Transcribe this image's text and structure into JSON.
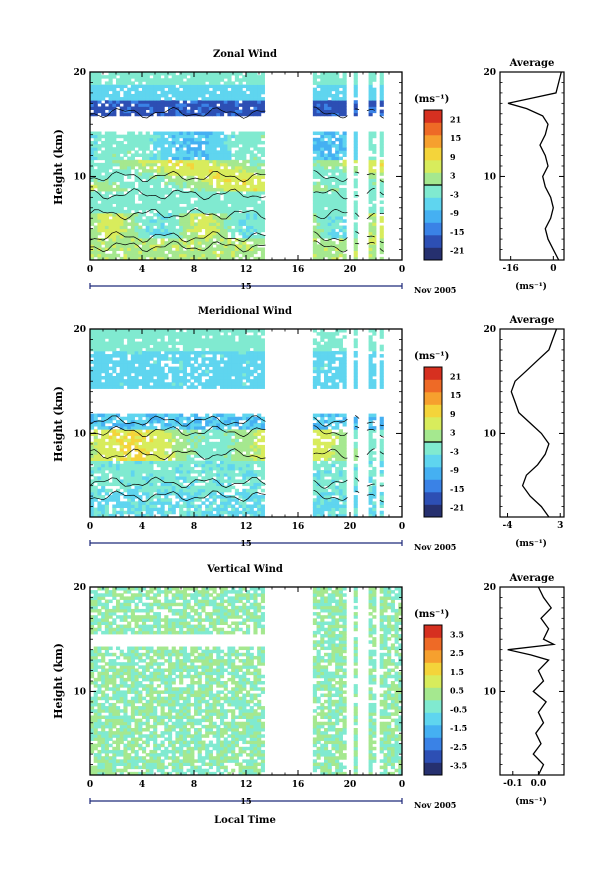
{
  "figure": {
    "xlabel": "Local Time",
    "date_label": "Nov 2005",
    "day_label": "15",
    "units_label": "(ms⁻¹)",
    "avg_title": "Average",
    "ylabel": "Height (km)"
  },
  "chart_data": [
    {
      "type": "heatmap",
      "title": "Zonal Wind",
      "xlabel": "",
      "ylabel": "Height (km)",
      "xlim": [
        0,
        24
      ],
      "ylim": [
        2,
        20
      ],
      "x_ticks": [
        "0",
        "4",
        "8",
        "12",
        "16",
        "20",
        "0"
      ],
      "x_tick_values": [
        0,
        4,
        8,
        12,
        16,
        20,
        24
      ],
      "y_ticks": [
        "10",
        "20"
      ],
      "y_tick_values": [
        10,
        20
      ],
      "data_gaps": [
        [
          13.5,
          17.2
        ],
        [
          19.8,
          20.4
        ],
        [
          20.7,
          21.3
        ],
        [
          21.9,
          22.3
        ]
      ],
      "colorbar": {
        "label": "(ms⁻¹)",
        "range": [
          -24,
          24
        ],
        "ticks": [
          "21",
          "15",
          "9",
          "3",
          "-3",
          "-9",
          "-15",
          "-21"
        ],
        "tick_values": [
          21,
          15,
          9,
          3,
          -3,
          -9,
          -15,
          -21
        ]
      },
      "profile": {
        "title": "Average",
        "x_ticks": [
          "-16",
          "0"
        ],
        "x_tick_values": [
          -16,
          0
        ],
        "xlim": [
          -20,
          4
        ],
        "xlabel": "(ms⁻¹)",
        "y_ticks": [
          "10",
          "20"
        ],
        "y_tick_values": [
          10,
          20
        ],
        "height": [
          2,
          3,
          4,
          5,
          6,
          7,
          8,
          9,
          10,
          11,
          12,
          13,
          14,
          15,
          15.8,
          16.5,
          17,
          17.5,
          18,
          19,
          20
        ],
        "value": [
          2,
          0,
          -2,
          -3,
          -1,
          0,
          -1,
          -3,
          -4,
          -2,
          -3,
          -5,
          -3,
          -2,
          -4,
          -10,
          -17,
          -8,
          1,
          2,
          3
        ]
      }
    },
    {
      "type": "heatmap",
      "title": "Meridional Wind",
      "xlabel": "",
      "ylabel": "Height (km)",
      "xlim": [
        0,
        24
      ],
      "ylim": [
        2,
        20
      ],
      "x_ticks": [
        "0",
        "4",
        "8",
        "12",
        "16",
        "20",
        "0"
      ],
      "x_tick_values": [
        0,
        4,
        8,
        12,
        16,
        20,
        24
      ],
      "y_ticks": [
        "10",
        "20"
      ],
      "y_tick_values": [
        10,
        20
      ],
      "data_gaps": [
        [
          13.5,
          17.2
        ],
        [
          19.8,
          20.4
        ],
        [
          20.7,
          21.3
        ],
        [
          21.9,
          22.3
        ]
      ],
      "colorbar": {
        "label": "(ms⁻¹)",
        "range": [
          -24,
          24
        ],
        "ticks": [
          "21",
          "15",
          "9",
          "3",
          "-3",
          "-9",
          "-15",
          "-21"
        ],
        "tick_values": [
          21,
          15,
          9,
          3,
          -3,
          -9,
          -15,
          -21
        ]
      },
      "profile": {
        "title": "Average",
        "x_ticks": [
          "-4",
          "3"
        ],
        "x_tick_values": [
          -4,
          3
        ],
        "xlim": [
          -5,
          3.5
        ],
        "xlabel": "(ms⁻¹)",
        "y_ticks": [
          "10",
          "20"
        ],
        "y_tick_values": [
          10,
          20
        ],
        "height": [
          2,
          3,
          4,
          5,
          6,
          7,
          8,
          9,
          10,
          11,
          12,
          13,
          14,
          15,
          16,
          17,
          18,
          19,
          20
        ],
        "value": [
          1.5,
          0.5,
          -1,
          -2,
          -1.5,
          0,
          1,
          1.5,
          0.5,
          -1,
          -2.5,
          -3,
          -3.5,
          -3,
          -1.5,
          0,
          1.5,
          2,
          2.5
        ]
      }
    },
    {
      "type": "heatmap",
      "title": "Vertical Wind",
      "xlabel": "Local Time",
      "ylabel": "Height (km)",
      "xlim": [
        0,
        24
      ],
      "ylim": [
        2,
        20
      ],
      "x_ticks": [
        "0",
        "4",
        "8",
        "12",
        "16",
        "20",
        "0"
      ],
      "x_tick_values": [
        0,
        4,
        8,
        12,
        16,
        20,
        24
      ],
      "y_ticks": [
        "10",
        "20"
      ],
      "y_tick_values": [
        10,
        20
      ],
      "data_gaps": [
        [
          13.5,
          17.2
        ],
        [
          19.8,
          20.4
        ],
        [
          20.7,
          21.3
        ],
        [
          21.9,
          22.3
        ]
      ],
      "colorbar": {
        "label": "(ms⁻¹)",
        "range": [
          -4,
          4
        ],
        "ticks": [
          "3.5",
          "2.5",
          "1.5",
          "0.5",
          "-0.5",
          "-1.5",
          "-2.5",
          "-3.5"
        ],
        "tick_values": [
          3.5,
          2.5,
          1.5,
          0.5,
          -0.5,
          -1.5,
          -2.5,
          -3.5
        ]
      },
      "profile": {
        "title": "Average",
        "x_ticks": [
          "-0.1",
          "0.0"
        ],
        "x_tick_values": [
          -0.1,
          0.0
        ],
        "xlim": [
          -0.15,
          0.1
        ],
        "xlabel": "(ms⁻¹)",
        "y_ticks": [
          "10",
          "20"
        ],
        "y_tick_values": [
          10,
          20
        ],
        "height": [
          2,
          3,
          4,
          5,
          6,
          7,
          8,
          9,
          10,
          11,
          12,
          13,
          13.5,
          14,
          14.5,
          15,
          16,
          17,
          18,
          19,
          20
        ],
        "value": [
          0.0,
          0.02,
          -0.02,
          0.01,
          -0.01,
          0.02,
          0.0,
          0.03,
          -0.02,
          0.02,
          0.0,
          0.04,
          -0.03,
          -0.12,
          0.06,
          0.02,
          0.04,
          0.01,
          0.05,
          0.02,
          0.0
        ]
      }
    }
  ]
}
